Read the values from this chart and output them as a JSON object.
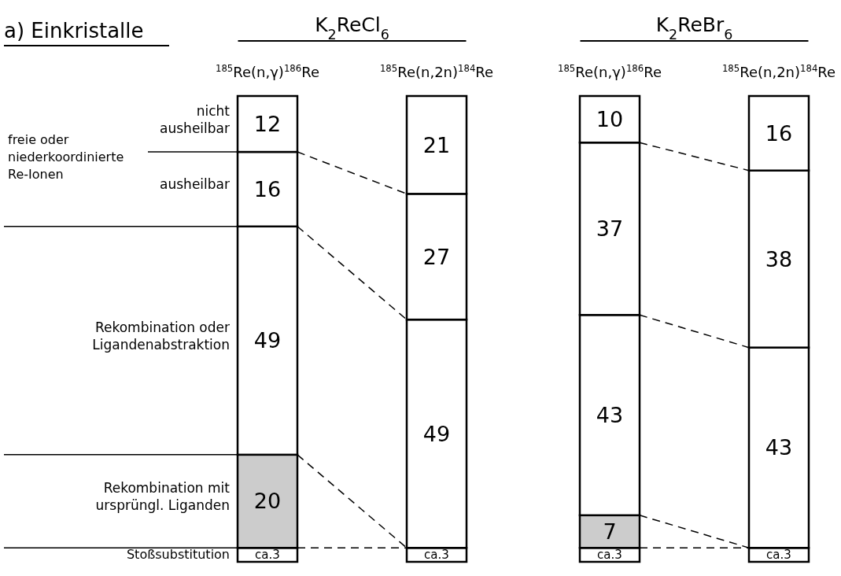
{
  "chart_data": {
    "type": "bar",
    "stacked": true,
    "title": "a) Einkristalle",
    "categories": [
      "$^{185}$Re(n,γ)$^{186}$Re",
      "$^{185}$Re(n,2n)$^{184}$Re",
      "$^{185}$Re(n,γ)$^{186}$Re",
      "$^{185}$Re(n,2n)$^{184}$Re"
    ],
    "series": [
      {
        "name": "Stoßsubstitution",
        "color": "#ffffff",
        "values": [
          3,
          3,
          3,
          3
        ],
        "value_labels": [
          "ca.3",
          "ca.3",
          "ca.3",
          "ca.3"
        ]
      },
      {
        "name": "Rekombination mit ursprüngl. Liganden",
        "color": "#cccccc",
        "values": [
          20,
          null,
          7,
          null
        ],
        "value_labels": [
          "20",
          null,
          "7",
          null
        ]
      },
      {
        "name": "Rekombination oder Ligandenabstraktion",
        "color": "#ffffff",
        "values": [
          49,
          49,
          43,
          43
        ],
        "value_labels": [
          "49",
          "49",
          "43",
          "43"
        ]
      },
      {
        "name": "ausheilbar",
        "color": "#ffffff",
        "values": [
          16,
          27,
          37,
          38
        ],
        "value_labels": [
          "16",
          "27",
          "37",
          "38"
        ]
      },
      {
        "name": "nicht ausheilbar",
        "color": "#ffffff",
        "values": [
          12,
          21,
          10,
          16
        ],
        "value_labels": [
          "12",
          "21",
          "10",
          "16"
        ]
      }
    ],
    "annotations": [
      "K$_{2}$ReCl$_{6}$",
      "K$_{2}$ReBr$_{6}$",
      "freie oder niederkoordinierte Re-Ionen"
    ]
  }
}
